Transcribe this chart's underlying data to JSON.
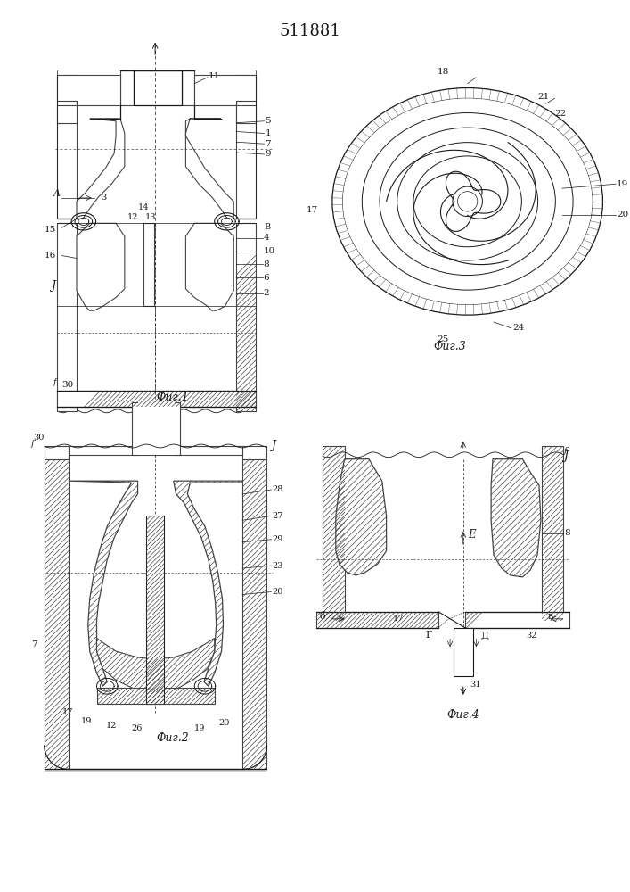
{
  "title": "511881",
  "background_color": "#ffffff",
  "fig_width": 7.07,
  "fig_height": 10.0,
  "dpi": 100,
  "lc": "#1a1a1a",
  "hc": "#444444",
  "lw": 0.9,
  "fig1_label": "Фиг.1",
  "fig2_label": "Фиг.2",
  "fig3_label": "Фиг.3",
  "fig4_label": "Фиг.4"
}
